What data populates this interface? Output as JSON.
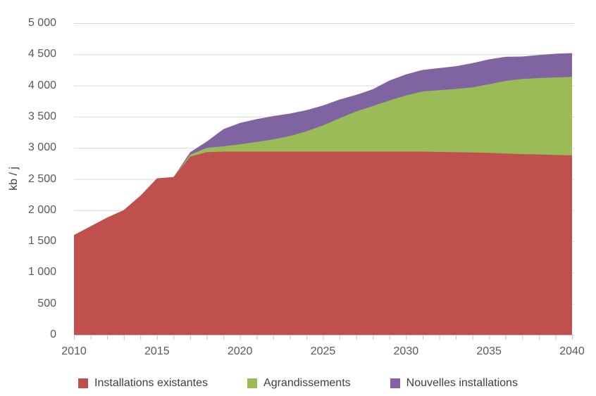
{
  "chart_data": {
    "type": "area",
    "stacked": true,
    "title": "",
    "ylabel": "kb / j",
    "xlabel": "",
    "ylim": [
      0,
      5000
    ],
    "xlim": [
      2010,
      2040
    ],
    "grid": true,
    "legend_position": "bottom",
    "x": [
      2010,
      2011,
      2012,
      2013,
      2014,
      2015,
      2016,
      2017,
      2018,
      2019,
      2020,
      2021,
      2022,
      2023,
      2024,
      2025,
      2026,
      2027,
      2028,
      2029,
      2030,
      2031,
      2032,
      2033,
      2034,
      2035,
      2036,
      2037,
      2038,
      2039,
      2040
    ],
    "series": [
      {
        "name": "Installations existantes",
        "color": "#C0504D",
        "values": [
          1600,
          1740,
          1880,
          2000,
          2230,
          2510,
          2530,
          2860,
          2930,
          2940,
          2940,
          2940,
          2940,
          2940,
          2940,
          2940,
          2940,
          2940,
          2940,
          2940,
          2940,
          2940,
          2935,
          2930,
          2925,
          2920,
          2910,
          2900,
          2895,
          2885,
          2880
        ]
      },
      {
        "name": "Agrandissements",
        "color": "#9BBB59",
        "values": [
          0,
          0,
          0,
          0,
          0,
          0,
          0,
          30,
          70,
          85,
          115,
          155,
          195,
          250,
          325,
          420,
          535,
          645,
          730,
          820,
          900,
          965,
          990,
          1015,
          1045,
          1100,
          1165,
          1205,
          1225,
          1245,
          1260
        ]
      },
      {
        "name": "Nouvelles installations",
        "color": "#8064A2",
        "values": [
          0,
          0,
          0,
          0,
          0,
          0,
          0,
          40,
          100,
          275,
          345,
          365,
          375,
          360,
          340,
          320,
          300,
          265,
          270,
          320,
          340,
          345,
          355,
          365,
          390,
          400,
          385,
          360,
          370,
          380,
          380
        ]
      }
    ],
    "y_ticks": {
      "values": [
        0,
        500,
        1000,
        1500,
        2000,
        2500,
        3000,
        3500,
        4000,
        4500,
        5000
      ],
      "labels": [
        "0",
        "500",
        "1 000",
        "1 500",
        "2 000",
        "2 500",
        "3 000",
        "3 500",
        "4 000",
        "4 500",
        "5 000"
      ]
    },
    "x_ticks": {
      "label_values": [
        2010,
        2015,
        2020,
        2025,
        2030,
        2035,
        2040
      ],
      "labels": [
        "2010",
        "2015",
        "2020",
        "2025",
        "2030",
        "2035",
        "2040"
      ],
      "minor_tick_every_year": true
    }
  },
  "style_colors": {
    "background": "#FFFFFF",
    "gridline": "#D9D9D9",
    "axis_line": "#C6C6C6",
    "tick_mark": "#C6C6C6",
    "tick_text": "#595959",
    "label_text": "#404040"
  }
}
